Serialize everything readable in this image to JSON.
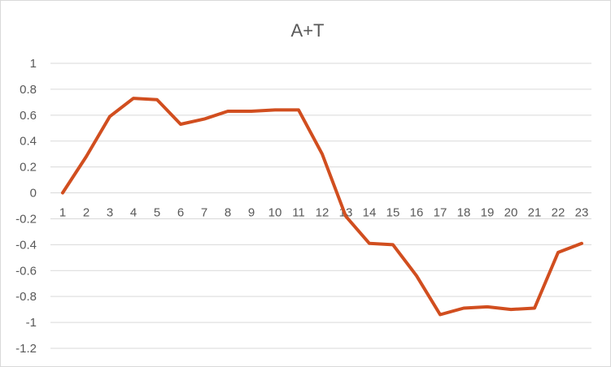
{
  "chart_data": {
    "type": "line",
    "title": "A+T",
    "xlabel": "",
    "ylabel": "",
    "categories": [
      "1",
      "2",
      "3",
      "4",
      "5",
      "6",
      "7",
      "8",
      "9",
      "10",
      "11",
      "12",
      "13",
      "14",
      "15",
      "16",
      "17",
      "18",
      "19",
      "20",
      "21",
      "22",
      "23"
    ],
    "series": [
      {
        "values": [
          0,
          0.28,
          0.59,
          0.73,
          0.72,
          0.53,
          0.57,
          0.63,
          0.63,
          0.64,
          0.64,
          0.3,
          -0.18,
          -0.39,
          -0.4,
          -0.64,
          -0.94,
          -0.89,
          -0.88,
          -0.9,
          -0.89,
          -0.46,
          -0.39
        ],
        "color": "#d14e1f"
      }
    ],
    "ylim": [
      -1.2,
      1
    ],
    "yticks": [
      "1",
      "0.8",
      "0.6",
      "0.4",
      "0.2",
      "0",
      "-0.2",
      "-0.4",
      "-0.6",
      "-0.8",
      "-1",
      "-1.2"
    ],
    "grid": true,
    "legend": "none"
  }
}
